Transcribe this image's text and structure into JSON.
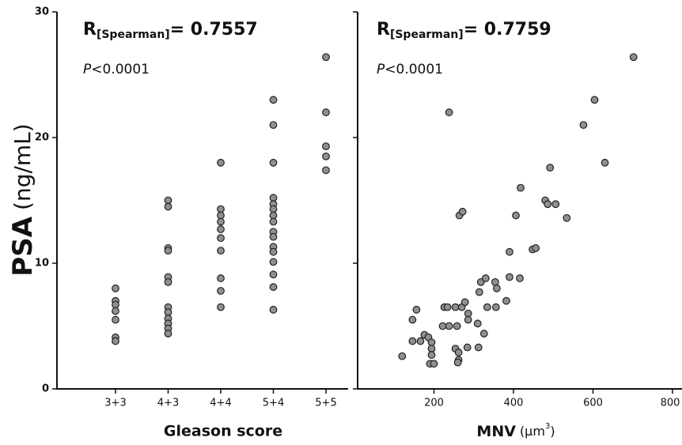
{
  "chart_data": [
    {
      "type": "strip",
      "categories": [
        "3+3",
        "4+3",
        "4+4",
        "5+4",
        "5+5"
      ],
      "values": [
        [
          8.0,
          7.0,
          6.7,
          6.2,
          5.5,
          4.1,
          3.8
        ],
        [
          15.0,
          14.5,
          11.2,
          11.0,
          8.9,
          8.5,
          6.5,
          6.1,
          5.6,
          5.2,
          4.8,
          4.4
        ],
        [
          18.0,
          14.3,
          13.8,
          13.3,
          12.7,
          12.0,
          11.0,
          8.8,
          7.8,
          6.5
        ],
        [
          23.0,
          21.0,
          18.0,
          15.2,
          14.7,
          14.3,
          13.8,
          13.3,
          12.5,
          12.1,
          11.3,
          10.9,
          10.1,
          9.1,
          8.1,
          6.3
        ],
        [
          26.4,
          22.0,
          19.3,
          18.5,
          17.4
        ]
      ],
      "color": "#8f8f8f",
      "ylim": [
        0,
        30
      ],
      "yticks": [
        0,
        10,
        20,
        30
      ],
      "xlabel": "Gleason score",
      "ylabel": [
        "PSA",
        "(ng/mL)"
      ],
      "r_label": [
        "R",
        "[Spearman]",
        "= 0.7557"
      ],
      "p_label": [
        "P",
        "<0.0001"
      ]
    },
    {
      "type": "scatter",
      "x": [
        120,
        146,
        166,
        146,
        156,
        176,
        186,
        194,
        194,
        194,
        190,
        200,
        238,
        226,
        234,
        222,
        238,
        254,
        270,
        258,
        254,
        262,
        262,
        260,
        264,
        272,
        278,
        286,
        286,
        284,
        312,
        310,
        314,
        318,
        330,
        334,
        326,
        354,
        358,
        356,
        382,
        390,
        390,
        406,
        418,
        416,
        448,
        456,
        480,
        486,
        506,
        492,
        534,
        576,
        604,
        630,
        702
      ],
      "y": [
        2.6,
        3.8,
        3.8,
        5.5,
        6.3,
        4.3,
        4.1,
        3.7,
        3.2,
        2.7,
        2.0,
        2.0,
        22.0,
        6.5,
        6.5,
        5.0,
        5.0,
        6.5,
        6.5,
        5.0,
        3.2,
        2.9,
        2.3,
        2.1,
        13.8,
        14.1,
        6.9,
        6.0,
        5.5,
        3.3,
        3.3,
        5.2,
        7.7,
        8.5,
        8.8,
        6.5,
        4.4,
        8.5,
        8.0,
        6.5,
        7.0,
        8.9,
        10.9,
        13.8,
        16.0,
        8.8,
        11.1,
        11.2,
        15.0,
        14.7,
        14.7,
        17.6,
        13.6,
        21.0,
        23.0,
        18.0,
        26.4
      ],
      "color": "#8f8f8f",
      "xlim": [
        0,
        800
      ],
      "xticks": [
        200,
        400,
        600,
        800
      ],
      "ylim": [
        0,
        30
      ],
      "yticks": [
        0,
        10,
        20,
        30
      ],
      "xlabel": [
        "MNV",
        "(μm",
        "3",
        ")"
      ],
      "r_label": [
        "R",
        "[Spearman]",
        "= 0.7759"
      ],
      "p_label": [
        "P",
        "<0.0001"
      ]
    }
  ]
}
